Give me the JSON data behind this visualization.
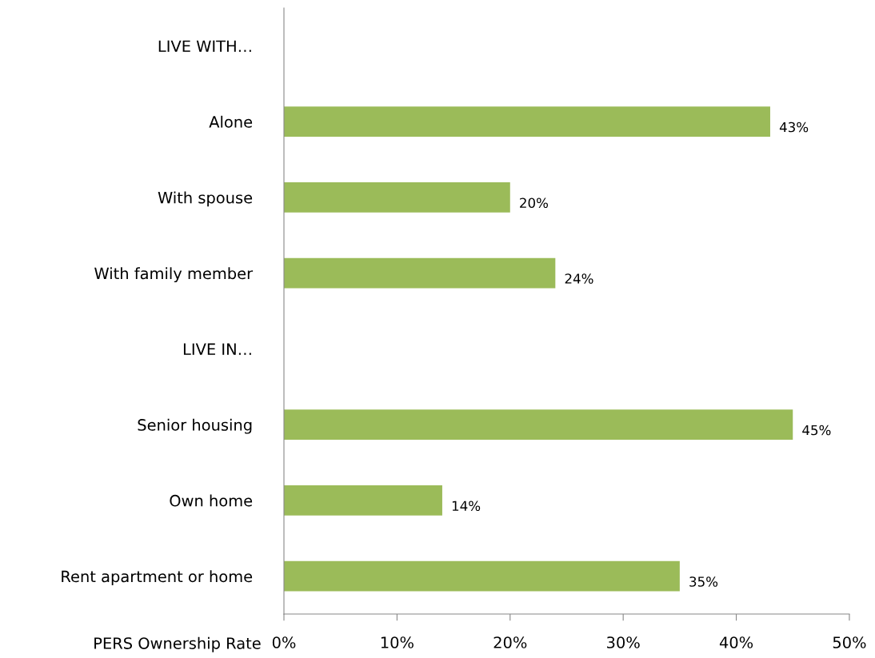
{
  "chart_data": {
    "type": "bar",
    "orientation": "horizontal",
    "xlabel": "PERS Ownership Rate",
    "categories": [
      "LIVE WITH…",
      "Alone",
      "With spouse",
      "With family member",
      "LIVE IN…",
      "Senior housing",
      "Own home",
      "Rent apartment or home"
    ],
    "values": [
      null,
      43,
      20,
      24,
      null,
      45,
      14,
      35
    ],
    "value_labels": [
      null,
      "43%",
      "20%",
      "24%",
      null,
      "45%",
      "14%",
      "35%"
    ],
    "color": "#9bbb59",
    "xlim": [
      0,
      50
    ],
    "xticks": [
      {
        "value": 0,
        "label": "0%"
      },
      {
        "value": 10,
        "label": "10%"
      },
      {
        "value": 20,
        "label": "20%"
      },
      {
        "value": 30,
        "label": "30%"
      },
      {
        "value": 40,
        "label": "40%"
      },
      {
        "value": 50,
        "label": "50%"
      }
    ],
    "grid": false
  }
}
